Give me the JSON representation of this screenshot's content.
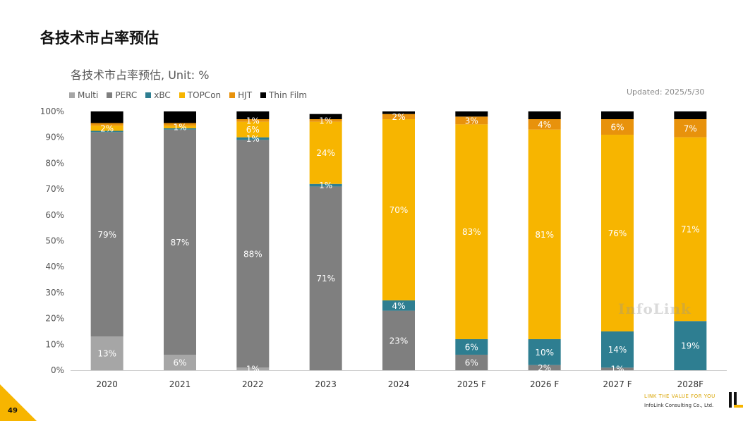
{
  "page": {
    "title": "各技术市占率预估",
    "page_number": "49",
    "updated": "Updated: 2025/5/30",
    "watermark": "InfoLink",
    "footer_tagline": "LINK THE VALUE FOR YOU",
    "footer_company": "InfoLink Consulting Co., Ltd."
  },
  "colors": {
    "Multi": "#a6a6a6",
    "PERC": "#7f7f7f",
    "xBC": "#2e7e91",
    "TOPCon": "#f7b500",
    "HJT": "#e8920c",
    "Thin Film": "#000000",
    "accent": "#f7b500"
  },
  "chart_data": {
    "type": "bar",
    "stacked": true,
    "title": "各技术市占率预估",
    "title_suffix": ", Unit: %",
    "xlabel": "",
    "ylabel": "",
    "ylim": [
      0,
      100
    ],
    "yticks": [
      "0%",
      "10%",
      "20%",
      "30%",
      "40%",
      "50%",
      "60%",
      "70%",
      "80%",
      "90%",
      "100%"
    ],
    "categories": [
      "2020",
      "2021",
      "2022",
      "2023",
      "2024",
      "2025 F",
      "2026 F",
      "2027 F",
      "2028F"
    ],
    "legend_position": "top-left",
    "series": [
      {
        "name": "Multi",
        "values": [
          13,
          6,
          1,
          0,
          0,
          0,
          0,
          0,
          0
        ]
      },
      {
        "name": "PERC",
        "values": [
          79,
          87,
          88,
          71,
          23,
          6,
          2,
          1,
          0
        ]
      },
      {
        "name": "xBC",
        "values": [
          0.5,
          0.5,
          1,
          1,
          4,
          6,
          10,
          14,
          19
        ]
      },
      {
        "name": "TOPCon",
        "values": [
          2,
          1,
          6,
          24,
          70,
          83,
          81,
          76,
          71
        ]
      },
      {
        "name": "HJT",
        "values": [
          1,
          1,
          1,
          1,
          2,
          3,
          4,
          6,
          7
        ]
      },
      {
        "name": "Thin Film",
        "values": [
          4.5,
          4.5,
          3,
          2,
          1,
          2,
          3,
          3,
          3
        ]
      }
    ],
    "labels": [
      {
        "category": "2020",
        "series": "Multi",
        "text": "13%"
      },
      {
        "category": "2020",
        "series": "PERC",
        "text": "79%"
      },
      {
        "category": "2020",
        "series": "TOPCon",
        "text": "2%"
      },
      {
        "category": "2021",
        "series": "Multi",
        "text": "6%"
      },
      {
        "category": "2021",
        "series": "PERC",
        "text": "87%"
      },
      {
        "category": "2021",
        "series": "TOPCon",
        "text": "1%"
      },
      {
        "category": "2022",
        "series": "Multi",
        "text": "1%"
      },
      {
        "category": "2022",
        "series": "PERC",
        "text": "88%"
      },
      {
        "category": "2022",
        "series": "xBC",
        "text": "1%"
      },
      {
        "category": "2022",
        "series": "TOPCon",
        "text": "6%"
      },
      {
        "category": "2022",
        "series": "HJT",
        "text": "1%"
      },
      {
        "category": "2023",
        "series": "PERC",
        "text": "71%"
      },
      {
        "category": "2023",
        "series": "xBC",
        "text": "1%"
      },
      {
        "category": "2023",
        "series": "TOPCon",
        "text": "24%"
      },
      {
        "category": "2023",
        "series": "HJT",
        "text": "1%"
      },
      {
        "category": "2024",
        "series": "PERC",
        "text": "23%"
      },
      {
        "category": "2024",
        "series": "xBC",
        "text": "4%"
      },
      {
        "category": "2024",
        "series": "TOPCon",
        "text": "70%"
      },
      {
        "category": "2024",
        "series": "HJT",
        "text": "2%"
      },
      {
        "category": "2025 F",
        "series": "PERC",
        "text": "6%"
      },
      {
        "category": "2025 F",
        "series": "xBC",
        "text": "6%"
      },
      {
        "category": "2025 F",
        "series": "TOPCon",
        "text": "83%"
      },
      {
        "category": "2025 F",
        "series": "HJT",
        "text": "3%"
      },
      {
        "category": "2026 F",
        "series": "PERC",
        "text": "2%"
      },
      {
        "category": "2026 F",
        "series": "xBC",
        "text": "10%"
      },
      {
        "category": "2026 F",
        "series": "TOPCon",
        "text": "81%"
      },
      {
        "category": "2026 F",
        "series": "HJT",
        "text": "4%"
      },
      {
        "category": "2027 F",
        "series": "PERC",
        "text": "1%"
      },
      {
        "category": "2027 F",
        "series": "xBC",
        "text": "14%"
      },
      {
        "category": "2027 F",
        "series": "TOPCon",
        "text": "76%"
      },
      {
        "category": "2027 F",
        "series": "HJT",
        "text": "6%"
      },
      {
        "category": "2028F",
        "series": "xBC",
        "text": "19%"
      },
      {
        "category": "2028F",
        "series": "TOPCon",
        "text": "71%"
      },
      {
        "category": "2028F",
        "series": "HJT",
        "text": "7%"
      }
    ]
  }
}
